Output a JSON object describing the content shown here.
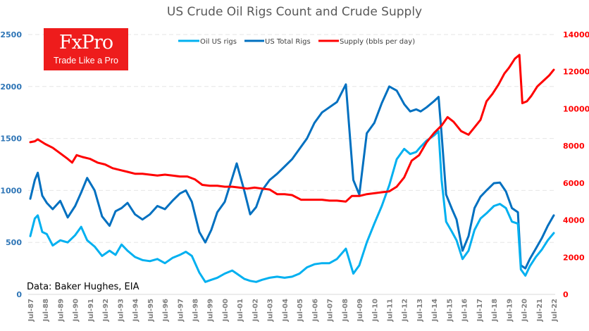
{
  "brand": {
    "name": "FxPro",
    "tagline": "Trade Like a Pro",
    "color": "#ee1c1c"
  },
  "source_note": "Data: Baker Hughes, EIA",
  "chart_data": {
    "type": "line",
    "title": "US Crude Oil Rigs Count and Crude Supply",
    "xlabel": "",
    "ylabel_left": "",
    "ylabel_right": "",
    "legend_position": "top-center",
    "grid": true,
    "xlim": [
      1987.5,
      2022.5
    ],
    "ylim_left": [
      0,
      2500
    ],
    "ylim_right": [
      0,
      14000
    ],
    "yticks_left": [
      0,
      500,
      1000,
      1500,
      2000,
      2500
    ],
    "yticks_right": [
      0,
      2000,
      4000,
      6000,
      8000,
      10000,
      12000,
      14000
    ],
    "xtick_labels": [
      "Jul-87",
      "Jul-88",
      "Jul-89",
      "Jul-90",
      "Jul-91",
      "Jul-92",
      "Jul-93",
      "Jul-94",
      "Jul-95",
      "Jul-96",
      "Jul-97",
      "Jul-98",
      "Jul-99",
      "Jul-00",
      "Jul-01",
      "Jul-02",
      "Jul-03",
      "Jul-04",
      "Jul-05",
      "Jul-06",
      "Jul-07",
      "Jul-08",
      "Jul-09",
      "Jul-10",
      "Jul-11",
      "Jul-12",
      "Jul-13",
      "Jul-14",
      "Jul-15",
      "Jul-16",
      "Jul-17",
      "Jul-18",
      "Jul-19",
      "Jul-20",
      "Jul-21",
      "Jul-22"
    ],
    "series": [
      {
        "name": "Oil US rigs",
        "axis": "left",
        "color": "#00b0f0",
        "x": [
          1987.5,
          1987.8,
          1988.0,
          1988.3,
          1988.6,
          1989.0,
          1989.5,
          1990.0,
          1990.5,
          1990.9,
          1991.3,
          1991.8,
          1992.3,
          1992.8,
          1993.2,
          1993.6,
          1994.0,
          1994.5,
          1995.0,
          1995.5,
          1996.0,
          1996.5,
          1997.0,
          1997.5,
          1997.9,
          1998.3,
          1998.8,
          1999.2,
          1999.6,
          2000.0,
          2000.5,
          2001.0,
          2001.3,
          2001.8,
          2002.2,
          2002.6,
          2003.0,
          2003.5,
          2004.0,
          2004.5,
          2005.0,
          2005.5,
          2006.0,
          2006.5,
          2007.0,
          2007.5,
          2008.0,
          2008.6,
          2009.1,
          2009.5,
          2010.0,
          2010.5,
          2011.0,
          2011.5,
          2012.0,
          2012.5,
          2012.9,
          2013.3,
          2013.6,
          2014.0,
          2014.5,
          2014.8,
          2015.0,
          2015.3,
          2015.7,
          2016.0,
          2016.4,
          2016.8,
          2017.2,
          2017.6,
          2018.0,
          2018.5,
          2018.9,
          2019.3,
          2019.7,
          2020.1,
          2020.3,
          2020.6,
          2020.9,
          2021.3,
          2021.7,
          2022.1,
          2022.5
        ],
        "values": [
          560,
          730,
          760,
          600,
          580,
          470,
          520,
          500,
          570,
          650,
          520,
          460,
          370,
          420,
          380,
          480,
          420,
          360,
          330,
          320,
          340,
          300,
          350,
          380,
          410,
          370,
          210,
          120,
          140,
          160,
          200,
          230,
          200,
          150,
          130,
          120,
          140,
          160,
          170,
          160,
          170,
          200,
          260,
          290,
          300,
          300,
          340,
          440,
          200,
          280,
          500,
          680,
          850,
          1050,
          1300,
          1400,
          1350,
          1370,
          1420,
          1480,
          1530,
          1570,
          1100,
          700,
          600,
          520,
          340,
          420,
          620,
          730,
          780,
          850,
          870,
          830,
          700,
          680,
          240,
          180,
          270,
          360,
          430,
          520,
          590
        ]
      },
      {
        "name": "US Total Rigs",
        "axis": "left",
        "color": "#0070c0",
        "x": [
          1987.5,
          1987.8,
          1988.0,
          1988.3,
          1988.6,
          1989.0,
          1989.5,
          1990.0,
          1990.5,
          1990.9,
          1991.3,
          1991.8,
          1992.3,
          1992.8,
          1993.2,
          1993.6,
          1994.0,
          1994.5,
          1995.0,
          1995.5,
          1996.0,
          1996.5,
          1997.0,
          1997.5,
          1997.9,
          1998.3,
          1998.8,
          1999.2,
          1999.6,
          2000.0,
          2000.5,
          2001.0,
          2001.3,
          2001.8,
          2002.2,
          2002.6,
          2003.0,
          2003.5,
          2004.0,
          2004.5,
          2005.0,
          2005.5,
          2006.0,
          2006.5,
          2007.0,
          2007.5,
          2008.0,
          2008.6,
          2009.1,
          2009.5,
          2010.0,
          2010.5,
          2011.0,
          2011.5,
          2012.0,
          2012.5,
          2012.9,
          2013.3,
          2013.6,
          2014.0,
          2014.5,
          2014.8,
          2015.0,
          2015.3,
          2015.7,
          2016.0,
          2016.4,
          2016.8,
          2017.2,
          2017.6,
          2018.0,
          2018.5,
          2018.9,
          2019.3,
          2019.7,
          2020.1,
          2020.3,
          2020.6,
          2020.9,
          2021.3,
          2021.7,
          2022.1,
          2022.5
        ],
        "values": [
          920,
          1100,
          1170,
          950,
          880,
          820,
          900,
          740,
          850,
          980,
          1120,
          1000,
          750,
          660,
          800,
          830,
          880,
          770,
          720,
          770,
          850,
          820,
          900,
          970,
          1000,
          890,
          600,
          500,
          620,
          790,
          890,
          1120,
          1260,
          1000,
          770,
          840,
          1000,
          1100,
          1160,
          1230,
          1300,
          1400,
          1500,
          1650,
          1750,
          1800,
          1850,
          2020,
          1100,
          960,
          1550,
          1650,
          1840,
          2000,
          1960,
          1830,
          1760,
          1780,
          1760,
          1800,
          1860,
          1900,
          1540,
          960,
          820,
          720,
          420,
          560,
          830,
          940,
          1000,
          1070,
          1075,
          990,
          830,
          790,
          280,
          250,
          340,
          440,
          540,
          660,
          760
        ]
      },
      {
        "name": "Supply (bbls per day)",
        "axis": "right",
        "color": "#ff0000",
        "x": [
          1987.5,
          1987.8,
          1988.0,
          1988.5,
          1989.0,
          1989.5,
          1990.0,
          1990.3,
          1990.6,
          1991.0,
          1991.5,
          1992.0,
          1992.5,
          1993.0,
          1993.5,
          1994.0,
          1994.5,
          1995.0,
          1995.5,
          1996.0,
          1996.5,
          1997.0,
          1997.5,
          1998.0,
          1998.5,
          1999.0,
          1999.5,
          2000.0,
          2000.5,
          2001.0,
          2001.5,
          2002.0,
          2002.5,
          2003.0,
          2003.5,
          2004.0,
          2004.5,
          2005.0,
          2005.6,
          2006.0,
          2006.5,
          2007.0,
          2007.5,
          2008.0,
          2008.6,
          2009.0,
          2009.5,
          2010.0,
          2010.5,
          2011.0,
          2011.5,
          2012.0,
          2012.5,
          2013.0,
          2013.5,
          2014.0,
          2014.5,
          2015.0,
          2015.4,
          2015.8,
          2016.3,
          2016.8,
          2017.2,
          2017.6,
          2018.0,
          2018.4,
          2018.8,
          2019.2,
          2019.5,
          2019.9,
          2020.2,
          2020.4,
          2020.7,
          2021.0,
          2021.4,
          2021.8,
          2022.2,
          2022.5
        ],
        "values": [
          8200,
          8250,
          8350,
          8100,
          7900,
          7600,
          7300,
          7100,
          7500,
          7400,
          7300,
          7100,
          7000,
          6800,
          6700,
          6600,
          6500,
          6500,
          6450,
          6400,
          6450,
          6400,
          6350,
          6350,
          6200,
          5900,
          5850,
          5850,
          5800,
          5800,
          5750,
          5700,
          5750,
          5700,
          5650,
          5400,
          5400,
          5350,
          5100,
          5100,
          5100,
          5100,
          5050,
          5050,
          5000,
          5300,
          5300,
          5400,
          5450,
          5500,
          5550,
          5800,
          6300,
          7200,
          7500,
          8200,
          8700,
          9100,
          9550,
          9300,
          8800,
          8600,
          9000,
          9400,
          10400,
          10800,
          11300,
          11900,
          12200,
          12700,
          12900,
          10300,
          10400,
          10700,
          11200,
          11500,
          11800,
          12100
        ]
      }
    ]
  }
}
